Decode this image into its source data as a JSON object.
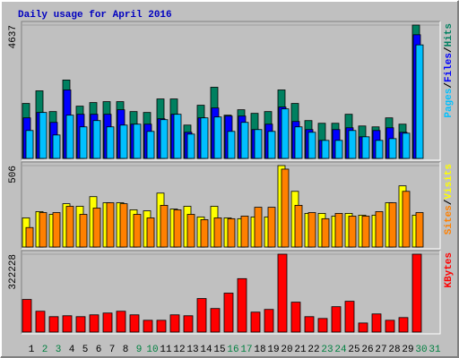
{
  "chart_data": {
    "type": "bar",
    "title": "Daily usage for April 2016",
    "title_color": "#0000c0",
    "legend_separator": "/",
    "categories": [
      "1",
      "2",
      "3",
      "4",
      "5",
      "6",
      "7",
      "8",
      "9",
      "10",
      "11",
      "12",
      "13",
      "14",
      "15",
      "16",
      "17",
      "18",
      "19",
      "20",
      "21",
      "22",
      "23",
      "24",
      "25",
      "26",
      "27",
      "28",
      "29",
      "30",
      "31"
    ],
    "category_colors": [
      "#000000",
      "#008040",
      "#008040",
      "#000000",
      "#000000",
      "#000000",
      "#000000",
      "#000000",
      "#008040",
      "#008040",
      "#000000",
      "#000000",
      "#000000",
      "#000000",
      "#000000",
      "#008040",
      "#008040",
      "#000000",
      "#000000",
      "#000000",
      "#000000",
      "#000000",
      "#008040",
      "#008040",
      "#000000",
      "#000000",
      "#000000",
      "#000000",
      "#000000",
      "#008040",
      "#008040"
    ],
    "panels": [
      {
        "ylim": [
          0,
          4637
        ],
        "yticks": [
          4637
        ],
        "series": [
          {
            "name": "Hits",
            "color": "#008060",
            "values": [
              1911,
              2350,
              1629,
              2726,
              1817,
              1942,
              1974,
              1974,
              1629,
              1598,
              2068,
              2068,
              1159,
              1849,
              2475,
              1504,
              1692,
              1567,
              1629,
              2381,
              1911,
              1316,
              1222,
              1222,
              1535,
              1128,
              1097,
              1410,
              1191,
              4637,
              null
            ]
          },
          {
            "name": "Files",
            "color": "#0000ff",
            "values": [
              1410,
              1598,
              1253,
              2381,
              1535,
              1535,
              1535,
              1692,
              1191,
              1191,
              1379,
              1535,
              909,
              1410,
              1754,
              1473,
              1473,
              1003,
              1191,
              1786,
              1285,
              1003,
              627,
              1003,
              1065,
              752,
              971,
              1065,
              909,
              4300,
              null
            ]
          },
          {
            "name": "Pages",
            "color": "#00c0ff",
            "values": [
              971,
              1598,
              815,
              1504,
              1097,
              1316,
              1097,
              1159,
              1191,
              940,
              1347,
              1535,
              846,
              1410,
              1441,
              940,
              1253,
              1003,
              940,
              1723,
              1097,
              909,
              627,
              627,
              971,
              752,
              627,
              689,
              877,
              3948,
              null
            ]
          }
        ]
      },
      {
        "ylim": [
          0,
          506
        ],
        "yticks": [
          506
        ],
        "series": [
          {
            "name": "Visits",
            "color": "#ffff00",
            "values": [
              181,
              220,
              203,
              269,
              253,
              313,
              275,
              275,
              231,
              225,
              335,
              236,
              253,
              187,
              253,
              181,
              176,
              187,
              187,
              506,
              346,
              209,
              209,
              192,
              209,
              198,
              198,
              275,
              380,
              198,
              null
            ]
          },
          {
            "name": "Sites",
            "color": "#ff8000",
            "values": [
              121,
              214,
              214,
              253,
              203,
              242,
              275,
              269,
              203,
              181,
              259,
              231,
              203,
              170,
              181,
              176,
              192,
              247,
              247,
              484,
              259,
              214,
              176,
              209,
              192,
              192,
              220,
              275,
              346,
              214,
              null
            ]
          }
        ]
      },
      {
        "ylim": [
          0,
          322228
        ],
        "yticks": [
          322228
        ],
        "series": [
          {
            "name": "KBytes",
            "color": "#ff0000",
            "values": [
              134886,
              86179,
              63697,
              67444,
              63697,
              71191,
              78685,
              86179,
              71191,
              48710,
              48710,
              71191,
              67444,
              138633,
              97419,
              161114,
              221063,
              82432,
              93672,
              322228,
              123645,
              63697,
              56203,
              104913,
              127392,
              37468,
              74938,
              48710,
              59950,
              322228,
              null
            ]
          }
        ]
      }
    ]
  }
}
